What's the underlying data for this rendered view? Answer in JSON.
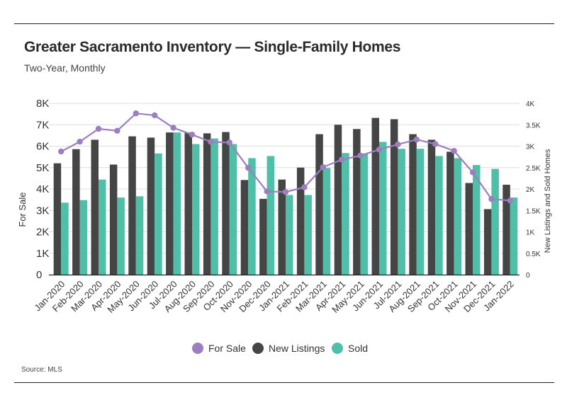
{
  "header": {
    "title": "Greater Sacramento Inventory — Single-Family Homes",
    "subtitle": "Two-Year, Monthly"
  },
  "footer": {
    "source": "Source:  MLS"
  },
  "colors": {
    "for_sale": "#9b7fbf",
    "new_listings": "#454545",
    "sold": "#4fbfa8",
    "grid": "#dddddd",
    "axis": "#222222"
  },
  "chart_data": {
    "type": "bar",
    "title": "Greater Sacramento Inventory — Single-Family Homes",
    "subtitle": "Two-Year, Monthly",
    "categories": [
      "Jan-2020",
      "Feb-2020",
      "Mar-2020",
      "Apr-2020",
      "May-2020",
      "Jun-2020",
      "Jul-2020",
      "Aug-2020",
      "Sep-2020",
      "Oct-2020",
      "Nov-2020",
      "Dec-2020",
      "Jan-2021",
      "Feb-2021",
      "Mar-2021",
      "Apr-2021",
      "May-2021",
      "Jun-2021",
      "Jul-2021",
      "Aug-2021",
      "Sep-2021",
      "Oct-2021",
      "Nov-2021",
      "Dec-2021",
      "Jan-2022"
    ],
    "ylabel_left": "For Sale",
    "ylabel_right": "New Listings and Sold Homes",
    "ylim_left": [
      0,
      8000
    ],
    "ylim_right": [
      0,
      4000
    ],
    "left_ticks": [
      "0",
      "1K",
      "2K",
      "3K",
      "4K",
      "5K",
      "6K",
      "7K",
      "8K"
    ],
    "right_ticks": [
      "0",
      "0.5K",
      "1K",
      "1.5K",
      "2K",
      "2.5K",
      "3K",
      "3.5K",
      "4K"
    ],
    "grid": true,
    "series": [
      {
        "name": "New Listings",
        "type": "bar",
        "axis": "right",
        "values": [
          2600,
          2930,
          3150,
          2570,
          3230,
          3200,
          3320,
          3320,
          3300,
          3330,
          2210,
          1770,
          2220,
          2500,
          3280,
          3500,
          3400,
          3660,
          3630,
          3280,
          3150,
          2870,
          2140,
          1530,
          2100
        ]
      },
      {
        "name": "Sold",
        "type": "bar",
        "axis": "right",
        "values": [
          1680,
          1740,
          2220,
          1800,
          1830,
          2830,
          3320,
          3050,
          3180,
          3050,
          2720,
          2770,
          1860,
          1860,
          2490,
          2840,
          2830,
          3100,
          2940,
          2940,
          2770,
          2720,
          2560,
          2470,
          1800
        ]
      },
      {
        "name": "For Sale",
        "type": "line",
        "axis": "left",
        "values": [
          5750,
          6210,
          6810,
          6720,
          7530,
          7440,
          6860,
          6540,
          6200,
          6170,
          4990,
          3890,
          3860,
          4080,
          5020,
          5370,
          5560,
          5840,
          6080,
          6310,
          6100,
          5780,
          4780,
          3530,
          3460
        ]
      }
    ],
    "legend": [
      "For Sale",
      "New Listings",
      "Sold"
    ],
    "legend_position": "bottom-center"
  }
}
